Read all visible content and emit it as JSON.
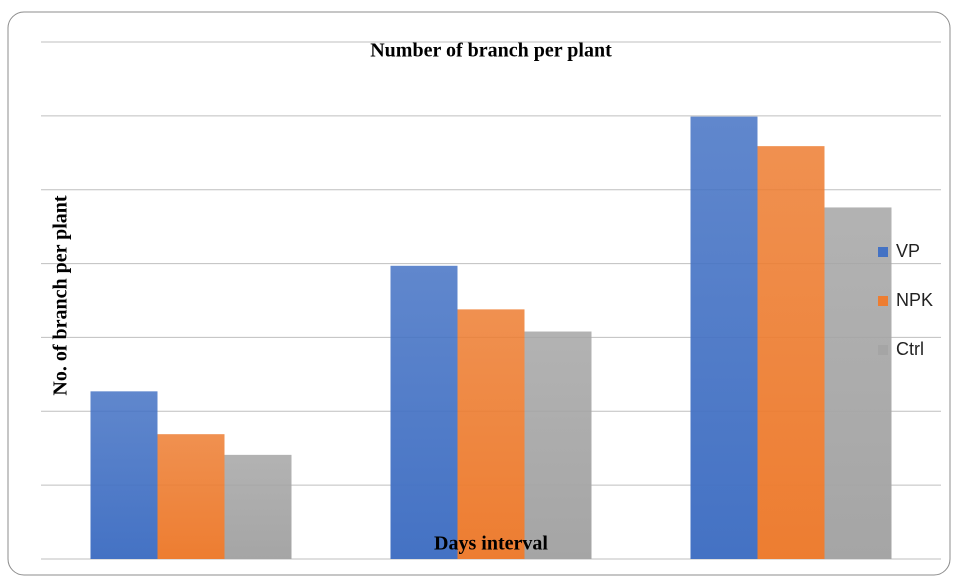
{
  "chart_data": {
    "type": "bar",
    "title": "Number of branch per plant",
    "x_label": "Days interval",
    "y_label": "No. of branch per plant",
    "categories": [
      null,
      null,
      null
    ],
    "series": [
      {
        "name": "VP",
        "color": "#4472c4",
        "values": [
          2.27,
          3.97,
          5.99
        ]
      },
      {
        "name": "NPK",
        "color": "#ed7d31",
        "values": [
          1.69,
          3.38,
          5.59
        ]
      },
      {
        "name": "Ctrl",
        "color": "#a5a5a5",
        "values": [
          1.41,
          3.08,
          4.76
        ]
      }
    ],
    "ylim": [
      0,
      7
    ],
    "yticks": [
      0,
      1,
      2,
      3,
      4,
      5,
      6,
      7
    ],
    "grid": true,
    "legend": "right"
  }
}
